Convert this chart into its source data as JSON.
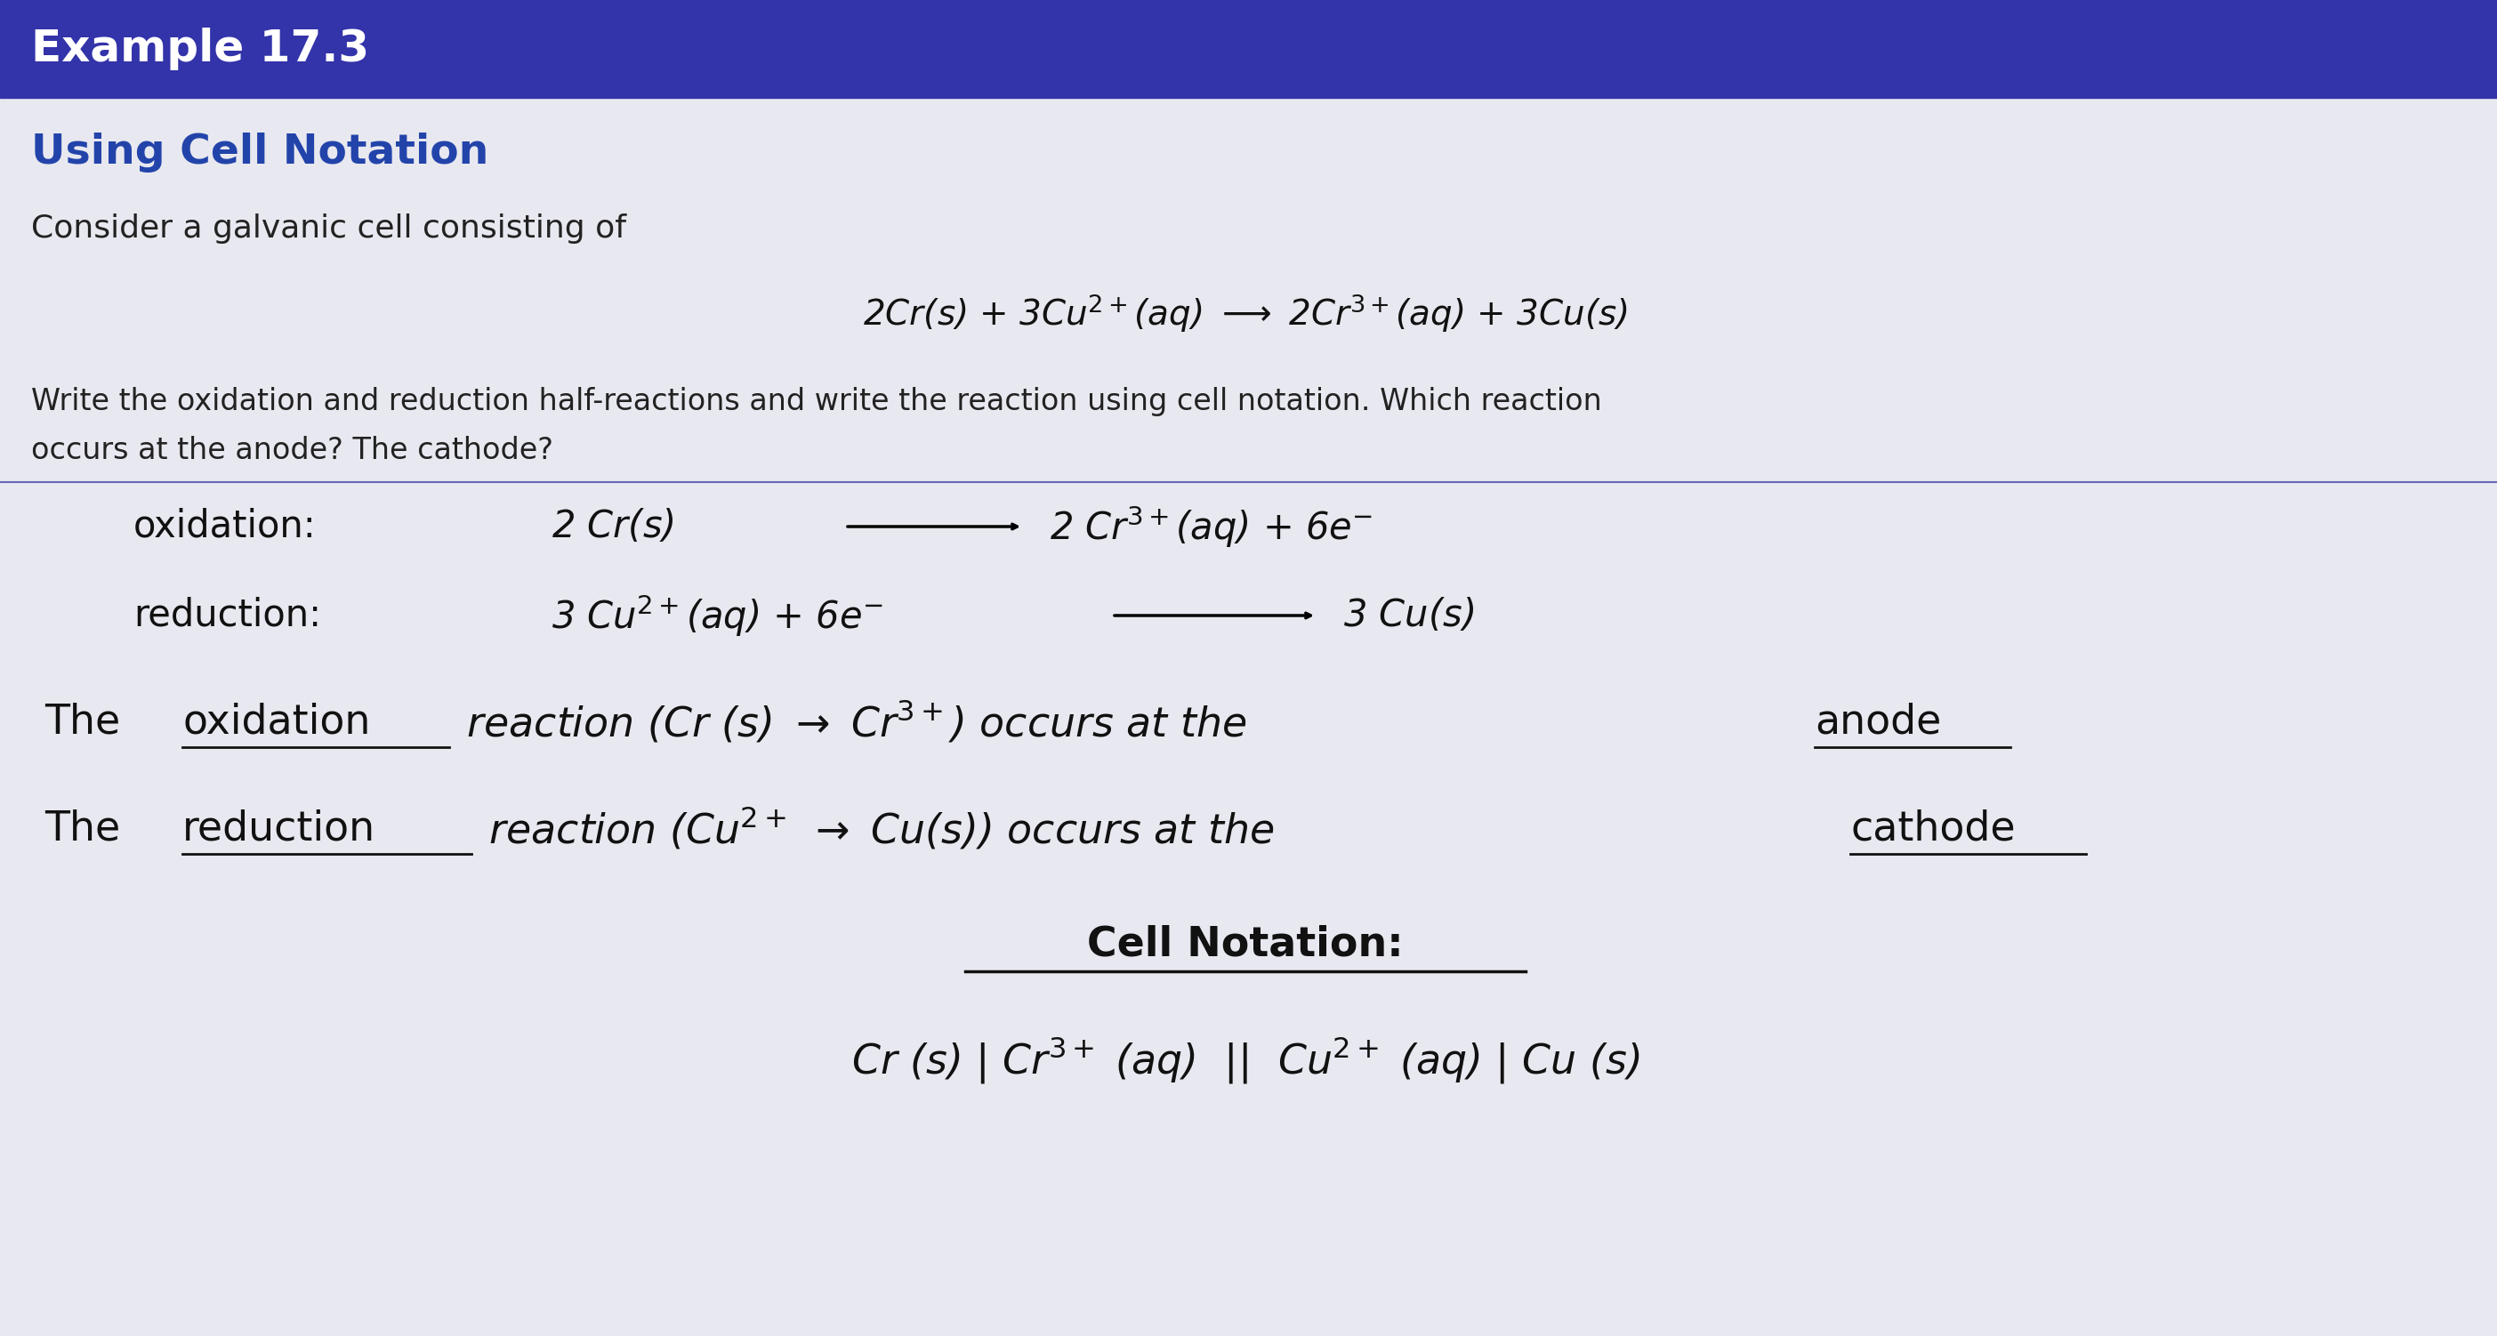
{
  "header_text": "Example 17.3",
  "header_bg": "#3333AA",
  "header_text_color": "#FFFFFF",
  "body_bg": "#E8E8F0",
  "title_text": "Using Cell Notation",
  "title_color": "#2244AA",
  "intro_text": "Consider a galvanic cell consisting of",
  "intro_color": "#222222",
  "question_color": "#222222",
  "body_text_color": "#111111",
  "large_text_color": "#111111"
}
